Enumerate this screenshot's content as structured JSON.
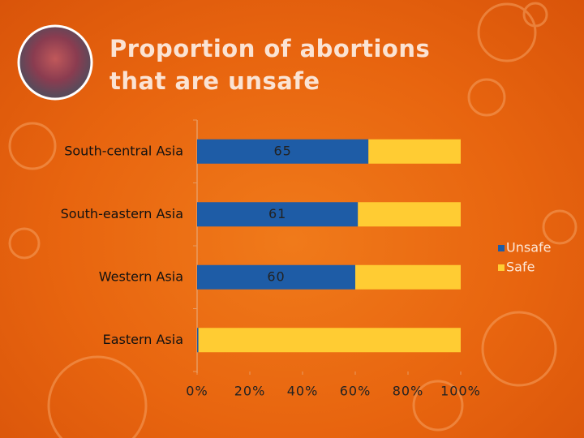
{
  "chart_data": {
    "type": "stacked-barh",
    "title": "Proportion of abortions that are unsafe",
    "categories": [
      "South-central Asia",
      "South-eastern Asia",
      "Western Asia",
      "Eastern Asia"
    ],
    "series": [
      {
        "name": "Unsafe",
        "color": "#1e5ca6",
        "values": [
          65,
          61,
          60,
          0.5
        ]
      },
      {
        "name": "Safe",
        "color": "#ffcc33",
        "values": [
          35,
          39,
          40,
          99.5
        ]
      }
    ],
    "xlim": [
      0,
      100
    ],
    "xticks": [
      {
        "value": 0,
        "label": "0%"
      },
      {
        "value": 20,
        "label": "20%"
      },
      {
        "value": 40,
        "label": "40%"
      },
      {
        "value": 60,
        "label": "60%"
      },
      {
        "value": 80,
        "label": "80%"
      },
      {
        "value": 100,
        "label": "100%"
      }
    ],
    "legend": "right"
  }
}
